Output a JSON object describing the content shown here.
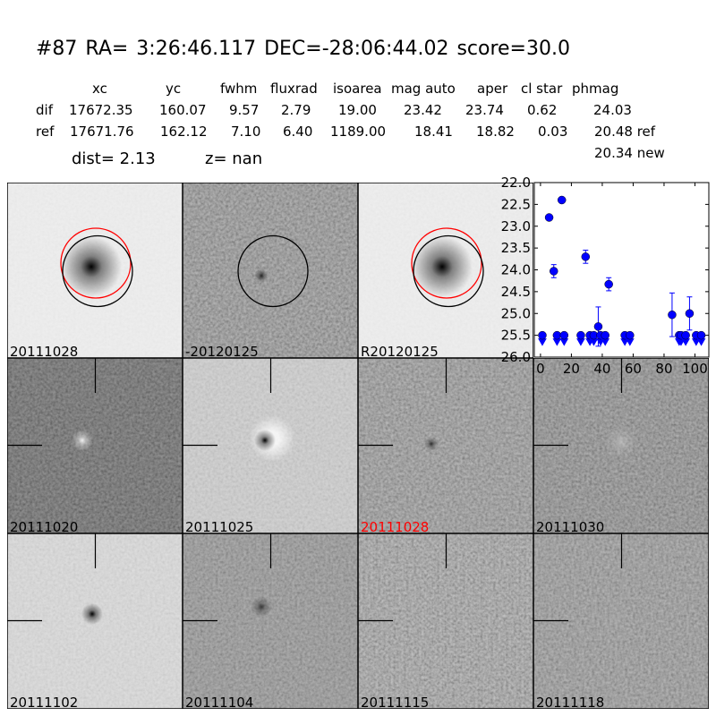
{
  "header": {
    "title": "#87   RA= 3:26:46.117 DEC=-28:06:44.02      score=30.0"
  },
  "table": {
    "columns": [
      "xc",
      "yc",
      "fwhm",
      "fluxrad",
      "isoarea",
      "mag auto",
      "aper",
      "cl star",
      "phmag"
    ],
    "rows": [
      {
        "label": "dif",
        "values": [
          "17672.35",
          "160.07",
          "9.57",
          "2.79",
          "19.00",
          "23.42",
          "23.74",
          "0.62",
          "24.03"
        ]
      },
      {
        "label": "ref",
        "values": [
          "17671.76",
          "162.12",
          "7.10",
          "6.40",
          "1189.00",
          "18.41",
          "18.82",
          "0.03",
          "20.48 ref"
        ]
      }
    ],
    "extra_phmag": "20.34 new",
    "dist": "dist=  2.13",
    "z": "z=   nan"
  },
  "panels": [
    {
      "label": "20111028",
      "label_color": "#000000",
      "ref_circle_color": "#ff0000"
    },
    {
      "label": "-20120125",
      "label_color": "#000000"
    },
    {
      "label": "R20120125",
      "label_color": "#000000",
      "ref_circle_color": "#ff0000"
    },
    {
      "label": "20111020",
      "label_color": "#000000"
    },
    {
      "label": "20111025",
      "label_color": "#000000"
    },
    {
      "label": "20111028",
      "label_color": "#ff0000"
    },
    {
      "label": "20111030",
      "label_color": "#000000"
    },
    {
      "label": "20111102",
      "label_color": "#000000"
    },
    {
      "label": "20111104",
      "label_color": "#000000"
    },
    {
      "label": "20111115",
      "label_color": "#000000"
    },
    {
      "label": "20111118",
      "label_color": "#000000"
    }
  ],
  "chart_data": {
    "type": "scatter",
    "title": "",
    "xlabel": "",
    "ylabel": "",
    "xlim": [
      -4,
      109
    ],
    "ylim": [
      26.0,
      22.0
    ],
    "y_inverted": true,
    "grid": false,
    "marker_color": "#0000ff",
    "xticks": [
      "0",
      "20",
      "40",
      "60",
      "80",
      "100"
    ],
    "yticks": [
      "22.0",
      "22.5",
      "23.0",
      "23.5",
      "24.0",
      "24.5",
      "25.0",
      "25.5",
      "26.0"
    ],
    "points": [
      {
        "x": 1.2,
        "y": 25.5,
        "upper_limit": true
      },
      {
        "x": 5.6,
        "y": 22.8
      },
      {
        "x": 8.6,
        "y": 24.03,
        "err": 0.15
      },
      {
        "x": 10.7,
        "y": 25.5,
        "upper_limit": true
      },
      {
        "x": 13.8,
        "y": 22.4
      },
      {
        "x": 15.3,
        "y": 25.5,
        "upper_limit": true
      },
      {
        "x": 26.1,
        "y": 25.5,
        "upper_limit": true
      },
      {
        "x": 29.2,
        "y": 23.7,
        "err": 0.15
      },
      {
        "x": 32.0,
        "y": 25.5,
        "upper_limit": true
      },
      {
        "x": 34.5,
        "y": 25.5,
        "upper_limit": true
      },
      {
        "x": 37.4,
        "y": 25.3,
        "err": 0.45
      },
      {
        "x": 38.9,
        "y": 25.5,
        "upper_limit": true
      },
      {
        "x": 41.9,
        "y": 25.5,
        "upper_limit": true
      },
      {
        "x": 44.2,
        "y": 24.33,
        "err": 0.15
      },
      {
        "x": 54.6,
        "y": 25.5,
        "upper_limit": true
      },
      {
        "x": 57.9,
        "y": 25.5,
        "upper_limit": true
      },
      {
        "x": 85.2,
        "y": 25.03,
        "err": 0.5
      },
      {
        "x": 89.8,
        "y": 25.5,
        "upper_limit": true
      },
      {
        "x": 91.0,
        "y": 25.5,
        "upper_limit": true
      },
      {
        "x": 94.0,
        "y": 25.5,
        "upper_limit": true
      },
      {
        "x": 96.5,
        "y": 25.0,
        "err": 0.38
      },
      {
        "x": 100.8,
        "y": 25.5,
        "upper_limit": true
      },
      {
        "x": 104.1,
        "y": 25.5,
        "upper_limit": true
      }
    ]
  }
}
